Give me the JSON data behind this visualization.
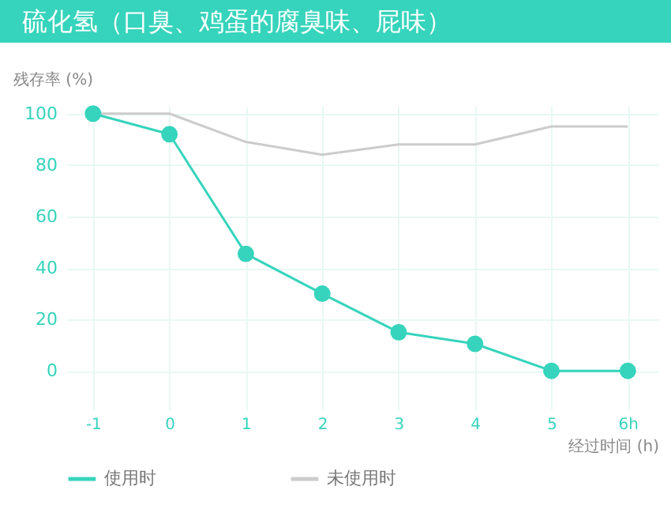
{
  "chart_data": {
    "type": "line",
    "title": "硫化氢（口臭、鸡蛋的腐臭味、屁味）",
    "ylabel": "残存率 (%)",
    "xlabel": "经过时间 (h)",
    "categories": [
      "-1",
      "0",
      "1",
      "2",
      "3",
      "4",
      "5",
      "6h"
    ],
    "series": [
      {
        "name": "使用时",
        "color": "#36d4bc",
        "marker": "circle",
        "values": [
          100,
          92,
          45.5,
          30,
          15,
          10.5,
          0,
          0
        ]
      },
      {
        "name": "未使用时",
        "color": "#cccccc",
        "marker": "none",
        "values": [
          100,
          100,
          89,
          84,
          88,
          88,
          95,
          95
        ]
      }
    ],
    "ylim": [
      -15,
      103
    ],
    "yticks": [
      0,
      20,
      40,
      60,
      80,
      100
    ],
    "grid": true,
    "legend": "bottom",
    "line_style": "solid"
  }
}
